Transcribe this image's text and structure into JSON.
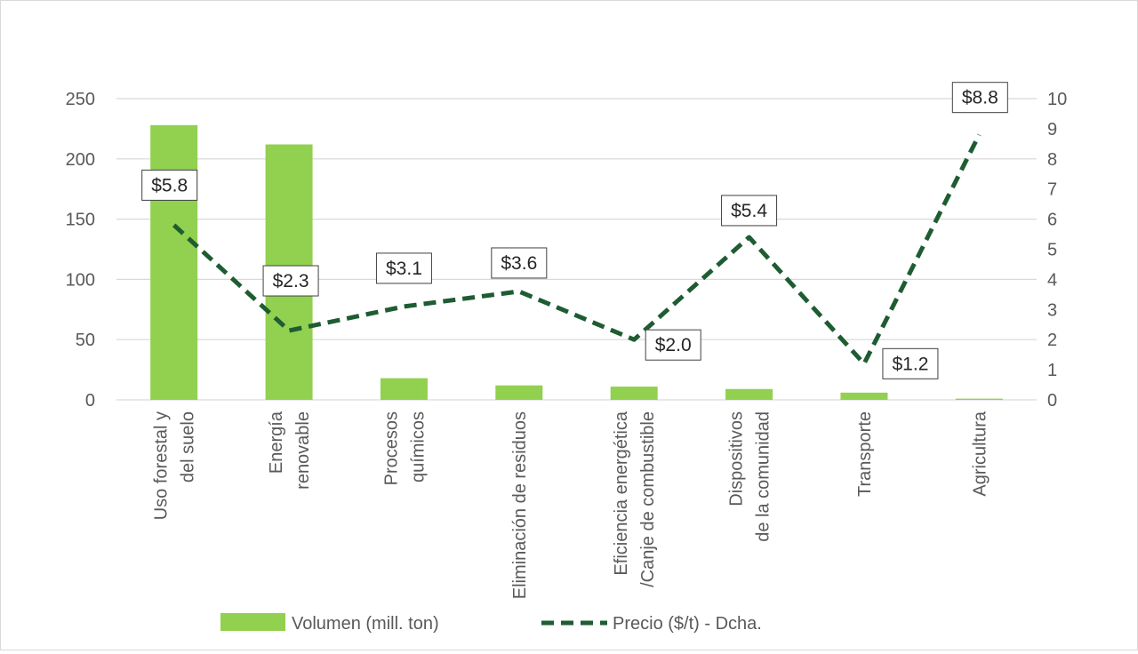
{
  "chart_data": {
    "type": "bar",
    "categories": [
      [
        "Uso forestal y",
        "del suelo"
      ],
      [
        "Energía",
        "renovable"
      ],
      [
        "Procesos",
        "químicos"
      ],
      [
        "Eliminación de residuos"
      ],
      [
        "Eficiencia energética",
        "/Canje de combustible"
      ],
      [
        "Dispositivos",
        "de la comunidad"
      ],
      [
        "Transporte"
      ],
      [
        "Agricultura"
      ]
    ],
    "series": [
      {
        "name": "Volumen (mill. ton)",
        "type": "bar",
        "axis": "left",
        "values": [
          228,
          212,
          18,
          12,
          11,
          9,
          6,
          1
        ]
      },
      {
        "name": "Precio ($/t) - Dcha.",
        "type": "line",
        "style": "dashed",
        "axis": "right",
        "values": [
          5.8,
          2.3,
          3.1,
          3.6,
          2.0,
          5.4,
          1.2,
          8.8
        ],
        "labels": [
          "$5.8",
          "$2.3",
          "$3.1",
          "$3.6",
          "$2.0",
          "$5.4",
          "$1.2",
          "$8.8"
        ]
      }
    ],
    "y_left": {
      "min": 0,
      "max": 250,
      "ticks": [
        0,
        50,
        100,
        150,
        200,
        250
      ]
    },
    "y_right": {
      "min": 0,
      "max": 10,
      "ticks": [
        0,
        1,
        2,
        3,
        4,
        5,
        6,
        7,
        8,
        9,
        10
      ]
    },
    "grid": true,
    "legend_position": "bottom",
    "colors": {
      "bar": "#92d050",
      "line": "#1e5c32",
      "grid": "#d9d9d9",
      "text": "#595959"
    }
  }
}
